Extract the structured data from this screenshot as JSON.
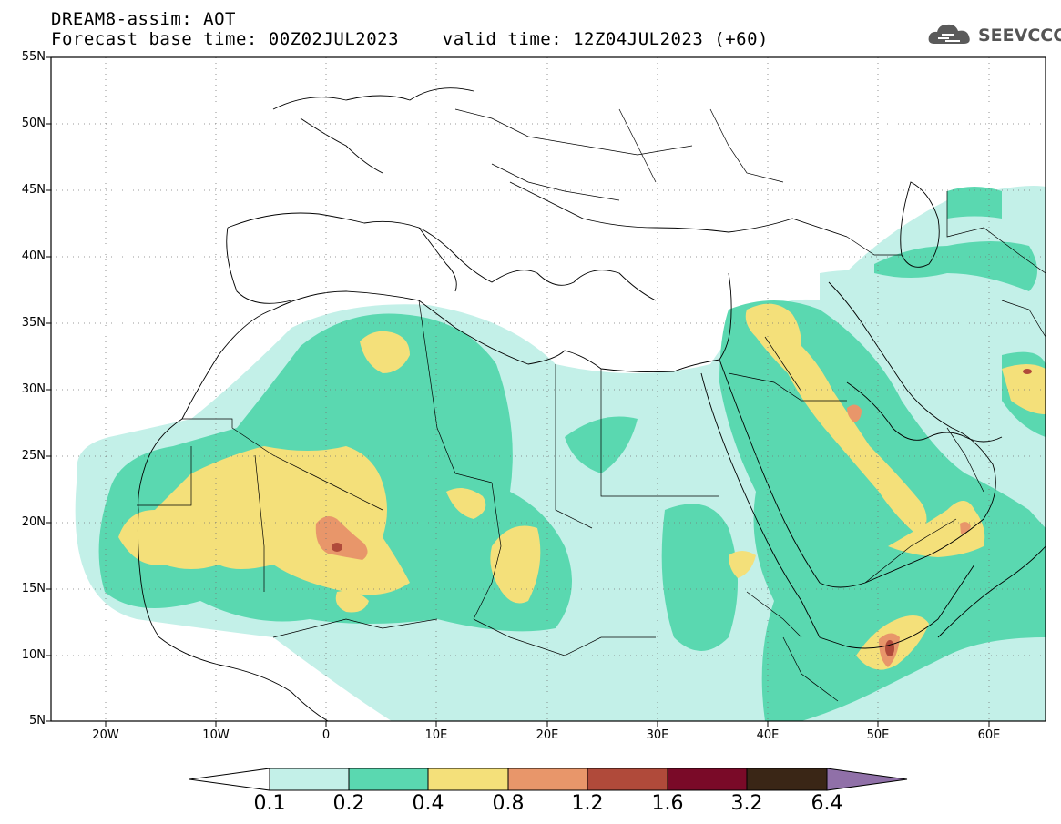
{
  "header": {
    "line1": "DREAM8-assim: AOT",
    "line2": "Forecast base time: 00Z02JUL2023    valid time: 12Z04JUL2023 (+60)"
  },
  "logo": {
    "text": "SEEVCCC",
    "icon": "cloud-icon"
  },
  "map": {
    "lat_labels": [
      "55N",
      "50N",
      "45N",
      "40N",
      "35N",
      "30N",
      "25N",
      "20N",
      "15N",
      "10N",
      "5N"
    ],
    "lon_labels": [
      "20W",
      "10W",
      "0",
      "10E",
      "20E",
      "30E",
      "40E",
      "50E",
      "60E"
    ],
    "extent": {
      "lon": [
        -25,
        65
      ],
      "lat": [
        5,
        55
      ]
    }
  },
  "colorbar": {
    "labels": [
      "0.1",
      "0.2",
      "0.4",
      "0.8",
      "1.2",
      "1.6",
      "3.2",
      "6.4"
    ],
    "colors": [
      "#c3f0e8",
      "#5ad8b0",
      "#f4e07a",
      "#e8966a",
      "#b04a3a",
      "#7a0a28",
      "#3a2616",
      "#9070a8"
    ]
  }
}
